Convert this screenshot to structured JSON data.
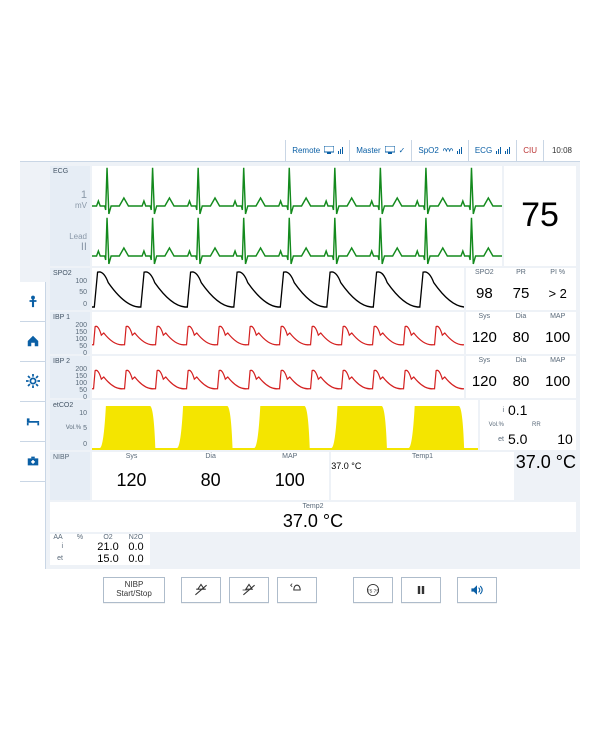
{
  "clock": "10:08",
  "topbar": [
    {
      "label": "Remote"
    },
    {
      "label": "Master"
    },
    {
      "label": "SpO2"
    },
    {
      "label": "ECG"
    },
    {
      "label": "CIU",
      "alert": true
    }
  ],
  "ecg": {
    "title": "ECG",
    "scale": "1",
    "scale_unit": "mV",
    "lead_label": "Lead",
    "lead": "II",
    "hr": "75",
    "color": "#138a1d",
    "cycles": 9
  },
  "spo2": {
    "title": "SPO2",
    "ticks": [
      "100",
      "50",
      "0"
    ],
    "color": "#000000",
    "cycles": 8,
    "readout": {
      "labels": [
        "SPO2",
        "PR",
        "PI %"
      ],
      "vals": [
        "98",
        "75",
        "> 2"
      ]
    }
  },
  "ibp1": {
    "title": "IBP 1",
    "unit": "mmHg",
    "ticks": [
      "200",
      "150",
      "100",
      "50",
      "0"
    ],
    "color": "#d42020",
    "cycles": 12,
    "readout": {
      "labels": [
        "Sys",
        "Dia",
        "MAP"
      ],
      "vals": [
        "120",
        "80",
        "100"
      ]
    }
  },
  "ibp2": {
    "title": "IBP 2",
    "unit": "mmHg",
    "ticks": [
      "200",
      "150",
      "100",
      "50",
      "0"
    ],
    "color": "#d42020",
    "cycles": 12,
    "readout": {
      "labels": [
        "Sys",
        "Dia",
        "MAP"
      ],
      "vals": [
        "120",
        "80",
        "100"
      ]
    }
  },
  "etco2": {
    "title": "etCO2",
    "unit": "Vol.%",
    "ticks": [
      "10",
      "5",
      "0"
    ],
    "color": "#f4e500",
    "cycles": 5,
    "side": {
      "i_label": "i",
      "i_val": "0.1",
      "vol_label": "Vol.%",
      "et_label": "et",
      "et_val": "5.0",
      "rr_label": "RR",
      "rr_val": "10"
    }
  },
  "nibp": {
    "title": "NIBP",
    "labels": [
      "Sys",
      "Dia",
      "MAP"
    ],
    "vals": [
      "120",
      "80",
      "100"
    ]
  },
  "temp1": {
    "label": "Temp1",
    "val": "37.0 °C"
  },
  "temp2": {
    "label": "Temp2",
    "val": "37.0 °C"
  },
  "aa": {
    "labels": [
      "AA",
      "%",
      "O2",
      "N2O"
    ],
    "rows": [
      {
        "l": "i",
        "v1": "21.0",
        "v2": "0.0"
      },
      {
        "l": "et",
        "v1": "15.0",
        "v2": "0.0"
      }
    ]
  },
  "footer": {
    "nibp_btn": [
      "NIBP",
      "Start/Stop"
    ]
  },
  "colors": {
    "panel_bg": "#eef2f7",
    "left_bg": "#e6edf5",
    "border": "#c9d6e5",
    "text_muted": "#5a6a7a",
    "accent": "#0a5fa5"
  }
}
